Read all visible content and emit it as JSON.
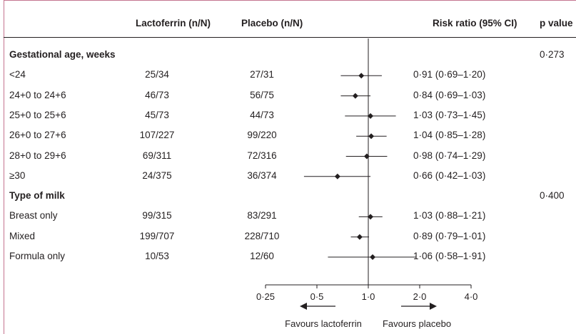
{
  "columns": {
    "lactoferrin": "Lactoferrin (n/N)",
    "placebo": "Placebo (n/N)",
    "risk_ratio": "Risk ratio (95% CI)",
    "p_value": "p value"
  },
  "colors": {
    "border": "#c4748f",
    "ink": "#231f20"
  },
  "groups": [
    {
      "label": "Gestational age, weeks",
      "p": "0·273",
      "rows": [
        {
          "label": "<24",
          "lacto": "25/34",
          "placebo": "27/31",
          "ci": "0·91 (0·69–1·20)"
        },
        {
          "label": "24+0 to 24+6",
          "lacto": "46/73",
          "placebo": "56/75",
          "ci": "0·84 (0·69–1·03)"
        },
        {
          "label": "25+0 to 25+6",
          "lacto": "45/73",
          "placebo": "44/73",
          "ci": "1·03 (0·73–1·45)"
        },
        {
          "label": "26+0 to 27+6",
          "lacto": "107/227",
          "placebo": "99/220",
          "ci": "1·04 (0·85–1·28)"
        },
        {
          "label": "28+0 to 29+6",
          "lacto": "69/311",
          "placebo": "72/316",
          "ci": "0·98 (0·74–1·29)"
        },
        {
          "label": "≥30",
          "lacto": "24/375",
          "placebo": "36/374",
          "ci": "0·66 (0·42–1·03)"
        }
      ]
    },
    {
      "label": "Type of milk",
      "p": "0·400",
      "rows": [
        {
          "label": "Breast only",
          "lacto": "99/315",
          "placebo": "83/291",
          "ci": "1·03 (0·88–1·21)"
        },
        {
          "label": "Mixed",
          "lacto": "199/707",
          "placebo": "228/710",
          "ci": "0·89 (0·79–1·01)"
        },
        {
          "label": "Formula only",
          "lacto": "10/53",
          "placebo": "12/60",
          "ci": "1·06 (0·58–1·91)"
        }
      ]
    }
  ],
  "chart_data": {
    "type": "forest",
    "scale": "log",
    "reference_line": 1.0,
    "xlim": [
      0.25,
      4.0
    ],
    "ticks": [
      {
        "value": 0.25,
        "label": "0·25"
      },
      {
        "value": 0.5,
        "label": "0·5"
      },
      {
        "value": 1.0,
        "label": "1·0"
      },
      {
        "value": 2.0,
        "label": "2·0"
      },
      {
        "value": 4.0,
        "label": "4·0"
      }
    ],
    "favours_left": "Favours lactoferrin",
    "favours_right": "Favours placebo",
    "points": [
      {
        "label": "<24",
        "rr": 0.91,
        "lo": 0.69,
        "hi": 1.2
      },
      {
        "label": "24+0 to 24+6",
        "rr": 0.84,
        "lo": 0.69,
        "hi": 1.03
      },
      {
        "label": "25+0 to 25+6",
        "rr": 1.03,
        "lo": 0.73,
        "hi": 1.45
      },
      {
        "label": "26+0 to 27+6",
        "rr": 1.04,
        "lo": 0.85,
        "hi": 1.28
      },
      {
        "label": "28+0 to 29+6",
        "rr": 0.98,
        "lo": 0.74,
        "hi": 1.29
      },
      {
        "label": "≥30",
        "rr": 0.66,
        "lo": 0.42,
        "hi": 1.03
      },
      {
        "label": "Breast only",
        "rr": 1.03,
        "lo": 0.88,
        "hi": 1.21
      },
      {
        "label": "Mixed",
        "rr": 0.89,
        "lo": 0.79,
        "hi": 1.01
      },
      {
        "label": "Formula only",
        "rr": 1.06,
        "lo": 0.58,
        "hi": 1.91
      }
    ]
  }
}
